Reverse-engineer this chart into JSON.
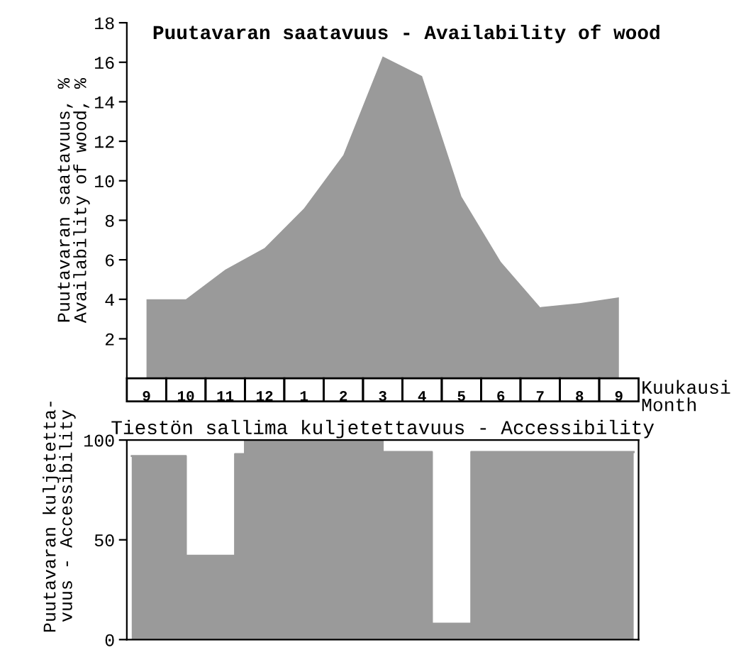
{
  "chart_data": [
    {
      "type": "area",
      "title": "Puutavaran saatavuus - Availability of wood",
      "ylabel": "Puutavaran saatavuus, %\nAvailability of wood, %",
      "xlabel": "Kuukausi\nMonth",
      "color": "#9a9a9a",
      "categories": [
        "9",
        "10",
        "11",
        "12",
        "1",
        "2",
        "3",
        "4",
        "5",
        "6",
        "7",
        "8",
        "9"
      ],
      "values": [
        4.0,
        4.0,
        5.5,
        6.6,
        8.6,
        11.3,
        16.3,
        15.3,
        9.2,
        5.9,
        3.6,
        3.8,
        4.1
      ],
      "ylim": [
        0,
        18
      ],
      "yticks": [
        2,
        4,
        6,
        8,
        10,
        12,
        14,
        16,
        18
      ]
    },
    {
      "type": "step",
      "title": "Tiestön sallima kuljetettavuus - Accessibility",
      "ylabel": "Puutavaran kuljetetta-\nvuus - Accessibility",
      "color": "#9a9a9a",
      "categories": [
        null,
        null,
        null,
        null,
        null,
        null,
        null,
        null,
        null,
        null,
        null,
        null,
        null,
        null,
        null,
        null,
        null,
        null,
        null,
        null,
        null,
        null,
        null,
        null,
        null,
        null,
        null,
        null,
        null,
        null,
        null,
        null,
        null,
        null,
        null,
        null,
        null,
        null,
        null,
        null,
        null,
        null,
        null,
        null,
        null,
        null,
        null,
        null,
        null,
        null,
        null,
        null
      ],
      "values": [
        92,
        92,
        92,
        92,
        92,
        92,
        42,
        42,
        42,
        42,
        42,
        93,
        100,
        100,
        100,
        100,
        100,
        100,
        100,
        100,
        100,
        100,
        100,
        100,
        100,
        100,
        94,
        94,
        94,
        94,
        94,
        8,
        8,
        8,
        8,
        94,
        94,
        94,
        94,
        94,
        94,
        94,
        94,
        94,
        94,
        94,
        94,
        94,
        94,
        94,
        94,
        94
      ],
      "ylim": [
        0,
        100
      ],
      "yticks": [
        0,
        50,
        100
      ],
      "tick_labels": "y"
    }
  ]
}
